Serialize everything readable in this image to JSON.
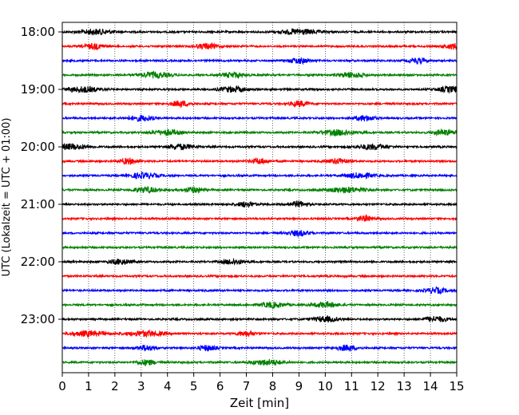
{
  "chart_data": {
    "type": "line",
    "title": "",
    "xlabel": "Zeit  [min]",
    "ylabel": "UTC (Lokalzeit = UTC + 01:00)",
    "xlim": [
      0,
      15
    ],
    "x_ticks": [
      0,
      1,
      2,
      3,
      4,
      5,
      6,
      7,
      8,
      9,
      10,
      11,
      12,
      13,
      14,
      15
    ],
    "x_tick_labels": [
      "0",
      "1",
      "2",
      "3",
      "4",
      "5",
      "6",
      "7",
      "8",
      "9",
      "10",
      "11",
      "12",
      "13",
      "14",
      "15"
    ],
    "y_tick_labels": [
      "18:00",
      "19:00",
      "20:00",
      "21:00",
      "22:00",
      "23:00"
    ],
    "vertical_grid": true,
    "trace_colors": [
      "#000000",
      "#ff0000",
      "#0000ff",
      "#008000"
    ],
    "traces": [
      {
        "start": "18:00",
        "color": "#000000",
        "bursts": [
          [
            1.3,
            0.9
          ],
          [
            9.0,
            1.1
          ]
        ]
      },
      {
        "start": "18:15",
        "color": "#ff0000",
        "bursts": [
          [
            1.2,
            0.6
          ],
          [
            5.5,
            0.6
          ],
          [
            14.9,
            0.6
          ]
        ]
      },
      {
        "start": "18:30",
        "color": "#0000ff",
        "bursts": [
          [
            9.0,
            0.6
          ],
          [
            13.5,
            0.5
          ]
        ]
      },
      {
        "start": "18:45",
        "color": "#008000",
        "bursts": [
          [
            3.5,
            0.9
          ],
          [
            6.5,
            0.6
          ],
          [
            11.0,
            0.7
          ]
        ]
      },
      {
        "start": "19:00",
        "color": "#000000",
        "bursts": [
          [
            0.8,
            0.9
          ],
          [
            6.5,
            0.8
          ],
          [
            14.8,
            0.8
          ]
        ]
      },
      {
        "start": "19:15",
        "color": "#ff0000",
        "bursts": [
          [
            4.5,
            0.6
          ],
          [
            9.0,
            0.5
          ]
        ]
      },
      {
        "start": "19:30",
        "color": "#0000ff",
        "bursts": [
          [
            3.0,
            0.7
          ],
          [
            11.5,
            0.6
          ]
        ]
      },
      {
        "start": "19:45",
        "color": "#008000",
        "bursts": [
          [
            4.0,
            0.8
          ],
          [
            10.5,
            1.0
          ],
          [
            14.5,
            0.6
          ]
        ]
      },
      {
        "start": "20:00",
        "color": "#000000",
        "bursts": [
          [
            0.3,
            1.0
          ],
          [
            4.5,
            0.7
          ],
          [
            11.8,
            0.8
          ]
        ]
      },
      {
        "start": "20:15",
        "color": "#ff0000",
        "bursts": [
          [
            2.5,
            0.5
          ],
          [
            7.5,
            0.5
          ],
          [
            10.5,
            0.6
          ]
        ]
      },
      {
        "start": "20:30",
        "color": "#0000ff",
        "bursts": [
          [
            3.1,
            0.8
          ],
          [
            11.3,
            0.8
          ]
        ]
      },
      {
        "start": "20:45",
        "color": "#008000",
        "bursts": [
          [
            3.2,
            0.7
          ],
          [
            5.0,
            0.6
          ],
          [
            10.8,
            1.0
          ]
        ]
      },
      {
        "start": "21:00",
        "color": "#000000",
        "bursts": [
          [
            7.0,
            0.5
          ],
          [
            9.0,
            0.5
          ]
        ]
      },
      {
        "start": "21:15",
        "color": "#ff0000",
        "bursts": [
          [
            11.5,
            0.5
          ]
        ]
      },
      {
        "start": "21:30",
        "color": "#0000ff",
        "bursts": [
          [
            9.0,
            0.6
          ]
        ]
      },
      {
        "start": "21:45",
        "color": "#008000",
        "bursts": []
      },
      {
        "start": "22:00",
        "color": "#000000",
        "bursts": [
          [
            2.2,
            0.6
          ],
          [
            6.5,
            0.6
          ]
        ]
      },
      {
        "start": "22:15",
        "color": "#ff0000",
        "bursts": []
      },
      {
        "start": "22:30",
        "color": "#0000ff",
        "bursts": [
          [
            14.2,
            0.6
          ]
        ]
      },
      {
        "start": "22:45",
        "color": "#008000",
        "bursts": [
          [
            8.0,
            0.7
          ],
          [
            10.0,
            0.7
          ]
        ]
      },
      {
        "start": "23:00",
        "color": "#000000",
        "bursts": [
          [
            10.0,
            0.7
          ],
          [
            14.2,
            0.7
          ]
        ]
      },
      {
        "start": "23:15",
        "color": "#ff0000",
        "bursts": [
          [
            1.0,
            1.0
          ],
          [
            3.2,
            1.0
          ],
          [
            7.0,
            0.5
          ]
        ]
      },
      {
        "start": "23:30",
        "color": "#0000ff",
        "bursts": [
          [
            3.2,
            0.5
          ],
          [
            5.5,
            0.5
          ],
          [
            10.8,
            0.6
          ]
        ]
      },
      {
        "start": "23:45",
        "color": "#008000",
        "bursts": [
          [
            3.2,
            0.5
          ],
          [
            7.8,
            0.9
          ]
        ]
      }
    ]
  }
}
